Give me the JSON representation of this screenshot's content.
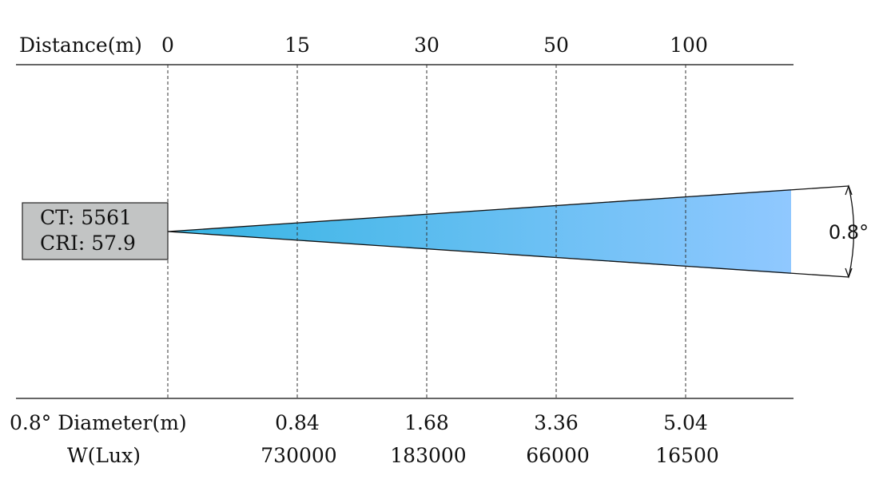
{
  "header": {
    "distance_label": "Distance(m)",
    "distances": [
      "0",
      "15",
      "30",
      "50",
      "100"
    ]
  },
  "source_box": {
    "ct_line": "CT: 5561",
    "cri_line": "CRI: 57.9"
  },
  "beam": {
    "angle_label": "0.8°",
    "gradient_start": "#35b4e3",
    "gradient_end": "#90c8ff"
  },
  "footer": {
    "diameter_label": "0.8° Diameter(m)",
    "diameters": [
      "0.84",
      "1.68",
      "3.36",
      "5.04"
    ],
    "lux_label": "W(Lux)",
    "lux_values": [
      "730000",
      "183000",
      "66000",
      "16500"
    ]
  }
}
